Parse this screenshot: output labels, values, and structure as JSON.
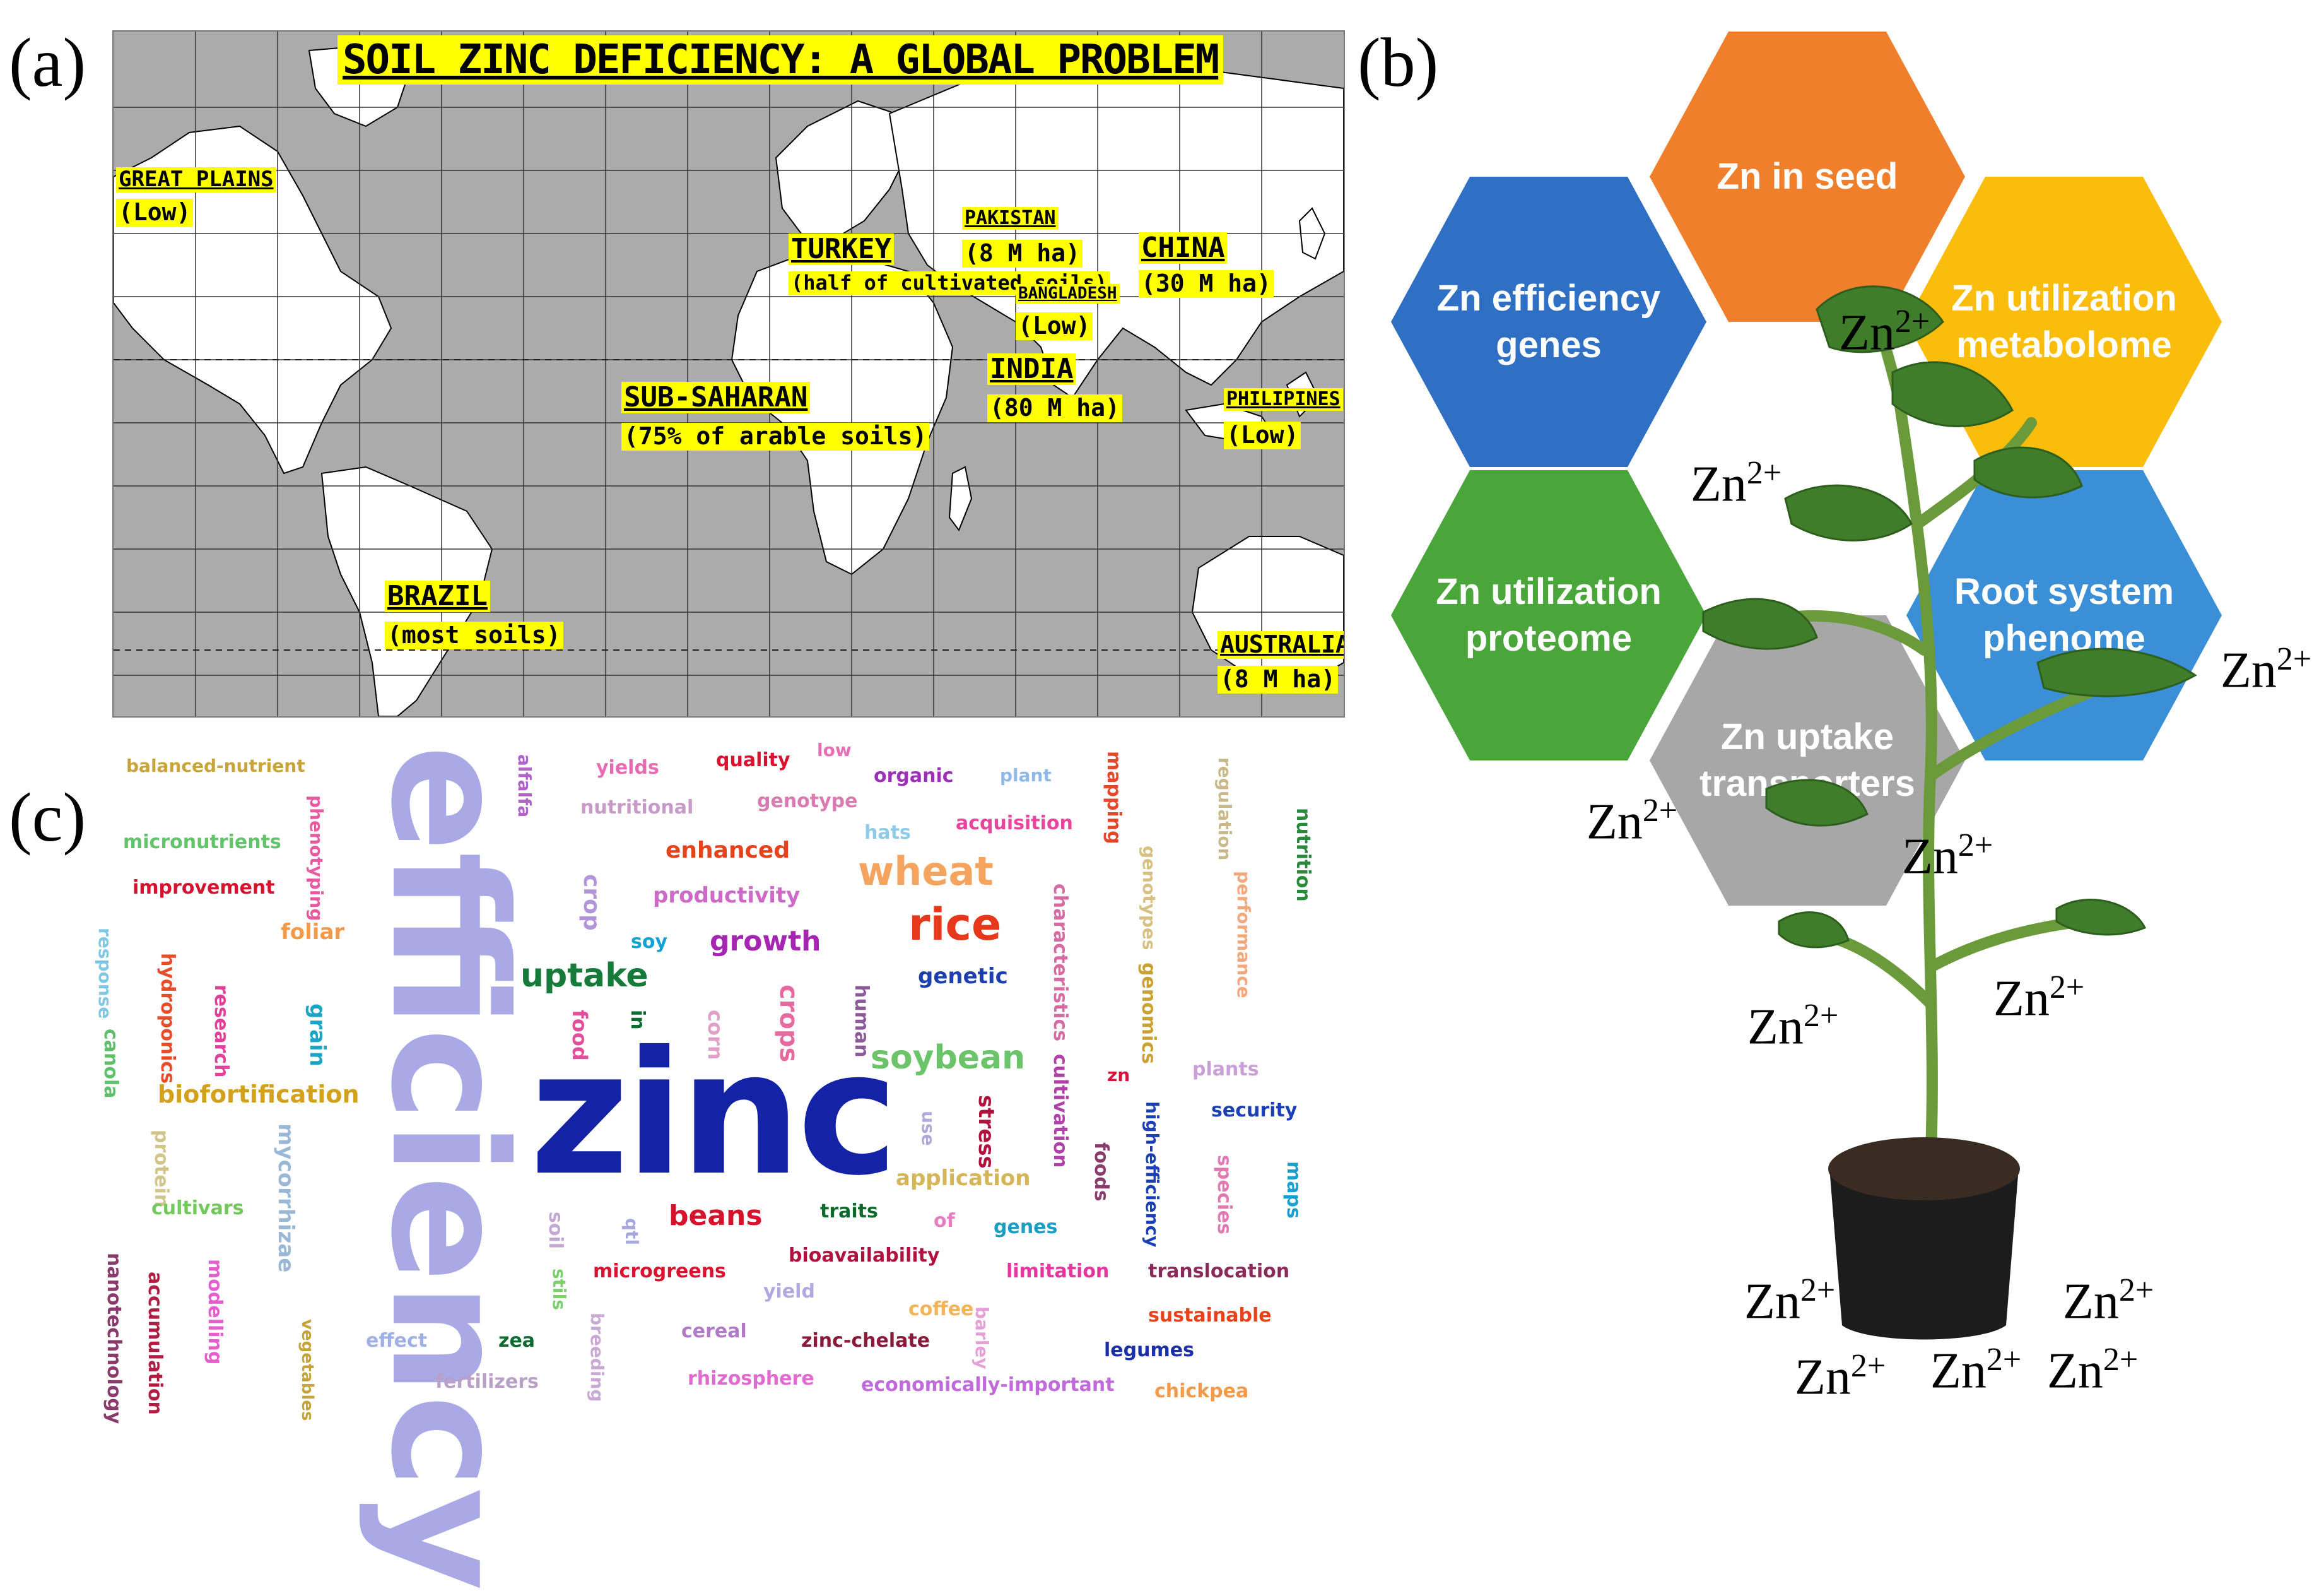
{
  "panel_labels": {
    "a": "(a)",
    "b": "(b)",
    "c": "(c)"
  },
  "map": {
    "title": "SOIL ZINC DEFICIENCY: A GLOBAL PROBLEM",
    "regions": [
      {
        "name": "GREAT PLAINS",
        "detail": "(Low)"
      },
      {
        "name": "TURKEY",
        "detail": "(half of cultivated soils)"
      },
      {
        "name": "PAKISTAN",
        "detail": "(8 M ha)"
      },
      {
        "name": "BANGLADESH",
        "detail": "(Low)"
      },
      {
        "name": "CHINA",
        "detail": "(30 M ha)"
      },
      {
        "name": "INDIA",
        "detail": "(80 M ha)"
      },
      {
        "name": "SUB-SAHARAN",
        "detail": "(75% of arable soils)"
      },
      {
        "name": "PHILIPINES",
        "detail": "(Low)"
      },
      {
        "name": "BRAZIL",
        "detail": "(most soils)"
      },
      {
        "name": "AUSTRALIA",
        "detail": "(8 M ha)"
      }
    ],
    "colors": {
      "ocean": "#ababab",
      "land": "#ffffff",
      "highlight": "#ffff00"
    }
  },
  "hexagons": [
    {
      "text": "Zn in seed",
      "color": "#f07f2b"
    },
    {
      "text": "Zn efficiency genes",
      "color": "#2f6fc4"
    },
    {
      "text": "Zn utilization metabolome",
      "color": "#fbbd0b"
    },
    {
      "text": "Zn utilization proteome",
      "color": "#4aa63b"
    },
    {
      "text": "Root system phenome",
      "color": "#3a8fd6"
    },
    {
      "text": "Zn uptake transporters",
      "color": "#a7a7a7"
    }
  ],
  "ion": {
    "base": "Zn",
    "charge": "2+"
  },
  "wordcloud": {
    "words": [
      {
        "text": "efficiency",
        "color": "#a9a9e6"
      },
      {
        "text": "zinc",
        "color": "#1423a6"
      },
      {
        "text": "balanced-nutrient",
        "color": "#c8a43a"
      },
      {
        "text": "micronutrients",
        "color": "#61c36a"
      },
      {
        "text": "improvement",
        "color": "#d6132f"
      },
      {
        "text": "foliar",
        "color": "#f29a4a"
      },
      {
        "text": "response",
        "color": "#7fc7e3"
      },
      {
        "text": "hydroponics",
        "color": "#e74c2a"
      },
      {
        "text": "research",
        "color": "#e0409a"
      },
      {
        "text": "grain",
        "color": "#1aa5c6"
      },
      {
        "text": "canola",
        "color": "#5fbf6b"
      },
      {
        "text": "biofortification",
        "color": "#d4a11c"
      },
      {
        "text": "protein",
        "color": "#d1c58a"
      },
      {
        "text": "mycorrhizae",
        "color": "#9ab8d6"
      },
      {
        "text": "cultivars",
        "color": "#71c95c"
      },
      {
        "text": "nanotechnology",
        "color": "#8a3a6b"
      },
      {
        "text": "accumulation",
        "color": "#b01f43"
      },
      {
        "text": "modelling",
        "color": "#e45fcb"
      },
      {
        "text": "vegetables",
        "color": "#c6a338"
      },
      {
        "text": "phenotyping",
        "color": "#e85aa0"
      },
      {
        "text": "alfalfa",
        "color": "#b063c9"
      },
      {
        "text": "yields",
        "color": "#e66bb3"
      },
      {
        "text": "quality",
        "color": "#d8122f"
      },
      {
        "text": "low",
        "color": "#e96db5"
      },
      {
        "text": "organic",
        "color": "#9b2fb8"
      },
      {
        "text": "plant",
        "color": "#8fb8e6"
      },
      {
        "text": "nutritional",
        "color": "#c79ac8"
      },
      {
        "text": "genotype",
        "color": "#d97ab0"
      },
      {
        "text": "hats",
        "color": "#8ecbe8"
      },
      {
        "text": "acquisition",
        "color": "#e9459c"
      },
      {
        "text": "enhanced",
        "color": "#e6431d"
      },
      {
        "text": "wheat",
        "color": "#f5a460"
      },
      {
        "text": "productivity",
        "color": "#cd69c8"
      },
      {
        "text": "crop",
        "color": "#b294d8"
      },
      {
        "text": "soy",
        "color": "#12a3d4"
      },
      {
        "text": "growth",
        "color": "#a626b3"
      },
      {
        "text": "rice",
        "color": "#e8381c"
      },
      {
        "text": "uptake",
        "color": "#157a3a"
      },
      {
        "text": "genetic",
        "color": "#1d3fb0"
      },
      {
        "text": "food",
        "color": "#e34d9a"
      },
      {
        "text": "in",
        "color": "#0f6b2f"
      },
      {
        "text": "corn",
        "color": "#e0a0c8"
      },
      {
        "text": "crops",
        "color": "#e66aa0"
      },
      {
        "text": "human",
        "color": "#8c5a9a"
      },
      {
        "text": "soybean",
        "color": "#6bc36a"
      },
      {
        "text": "mapping",
        "color": "#e4472a"
      },
      {
        "text": "regulation",
        "color": "#c9b98a"
      },
      {
        "text": "nutrition",
        "color": "#2a8a3c"
      },
      {
        "text": "genotypes",
        "color": "#d6c082"
      },
      {
        "text": "characteristics",
        "color": "#d66aa3"
      },
      {
        "text": "performance",
        "color": "#f4a77a"
      },
      {
        "text": "genomics",
        "color": "#c9a233"
      },
      {
        "text": "cultivation",
        "color": "#b13fa8"
      },
      {
        "text": "zn",
        "color": "#d6143a"
      },
      {
        "text": "plants",
        "color": "#c9a0d6"
      },
      {
        "text": "security",
        "color": "#1b3fb6"
      },
      {
        "text": "high-efficiency",
        "color": "#1b3fb6"
      },
      {
        "text": "foods",
        "color": "#8a3a6b"
      },
      {
        "text": "species",
        "color": "#e07ab0"
      },
      {
        "text": "maps",
        "color": "#1aa0d0"
      },
      {
        "text": "use",
        "color": "#b0a8d8"
      },
      {
        "text": "stress",
        "color": "#b1123d"
      },
      {
        "text": "application",
        "color": "#d6b458"
      },
      {
        "text": "soil",
        "color": "#c3a8d6"
      },
      {
        "text": "qtl",
        "color": "#a8a8e0"
      },
      {
        "text": "beans",
        "color": "#d6122d"
      },
      {
        "text": "traits",
        "color": "#0d6a2b"
      },
      {
        "text": "of",
        "color": "#e67dc0"
      },
      {
        "text": "genes",
        "color": "#1a9ec4"
      },
      {
        "text": "bioavailability",
        "color": "#b01240"
      },
      {
        "text": "limitation",
        "color": "#e6359c"
      },
      {
        "text": "translocation",
        "color": "#8a2a5a"
      },
      {
        "text": "microgreens",
        "color": "#d9122f"
      },
      {
        "text": "yield",
        "color": "#b0a8e0"
      },
      {
        "text": "coffee",
        "color": "#f2b45a"
      },
      {
        "text": "sustainable",
        "color": "#e6431d"
      },
      {
        "text": "barley",
        "color": "#e6a0d6"
      },
      {
        "text": "effect",
        "color": "#9fb0e6"
      },
      {
        "text": "zea",
        "color": "#0f6b2f"
      },
      {
        "text": "breeding",
        "color": "#c9a8d6"
      },
      {
        "text": "cereal",
        "color": "#b07ac6"
      },
      {
        "text": "zinc-chelate",
        "color": "#8a1a3a"
      },
      {
        "text": "legumes",
        "color": "#1b2fa6"
      },
      {
        "text": "fertilizers",
        "color": "#b9a0c6"
      },
      {
        "text": "rhizosphere",
        "color": "#e06ad0"
      },
      {
        "text": "economically-important",
        "color": "#c06adc"
      },
      {
        "text": "chickpea",
        "color": "#f29a4a"
      },
      {
        "text": "stils",
        "color": "#7acf6a"
      }
    ]
  }
}
